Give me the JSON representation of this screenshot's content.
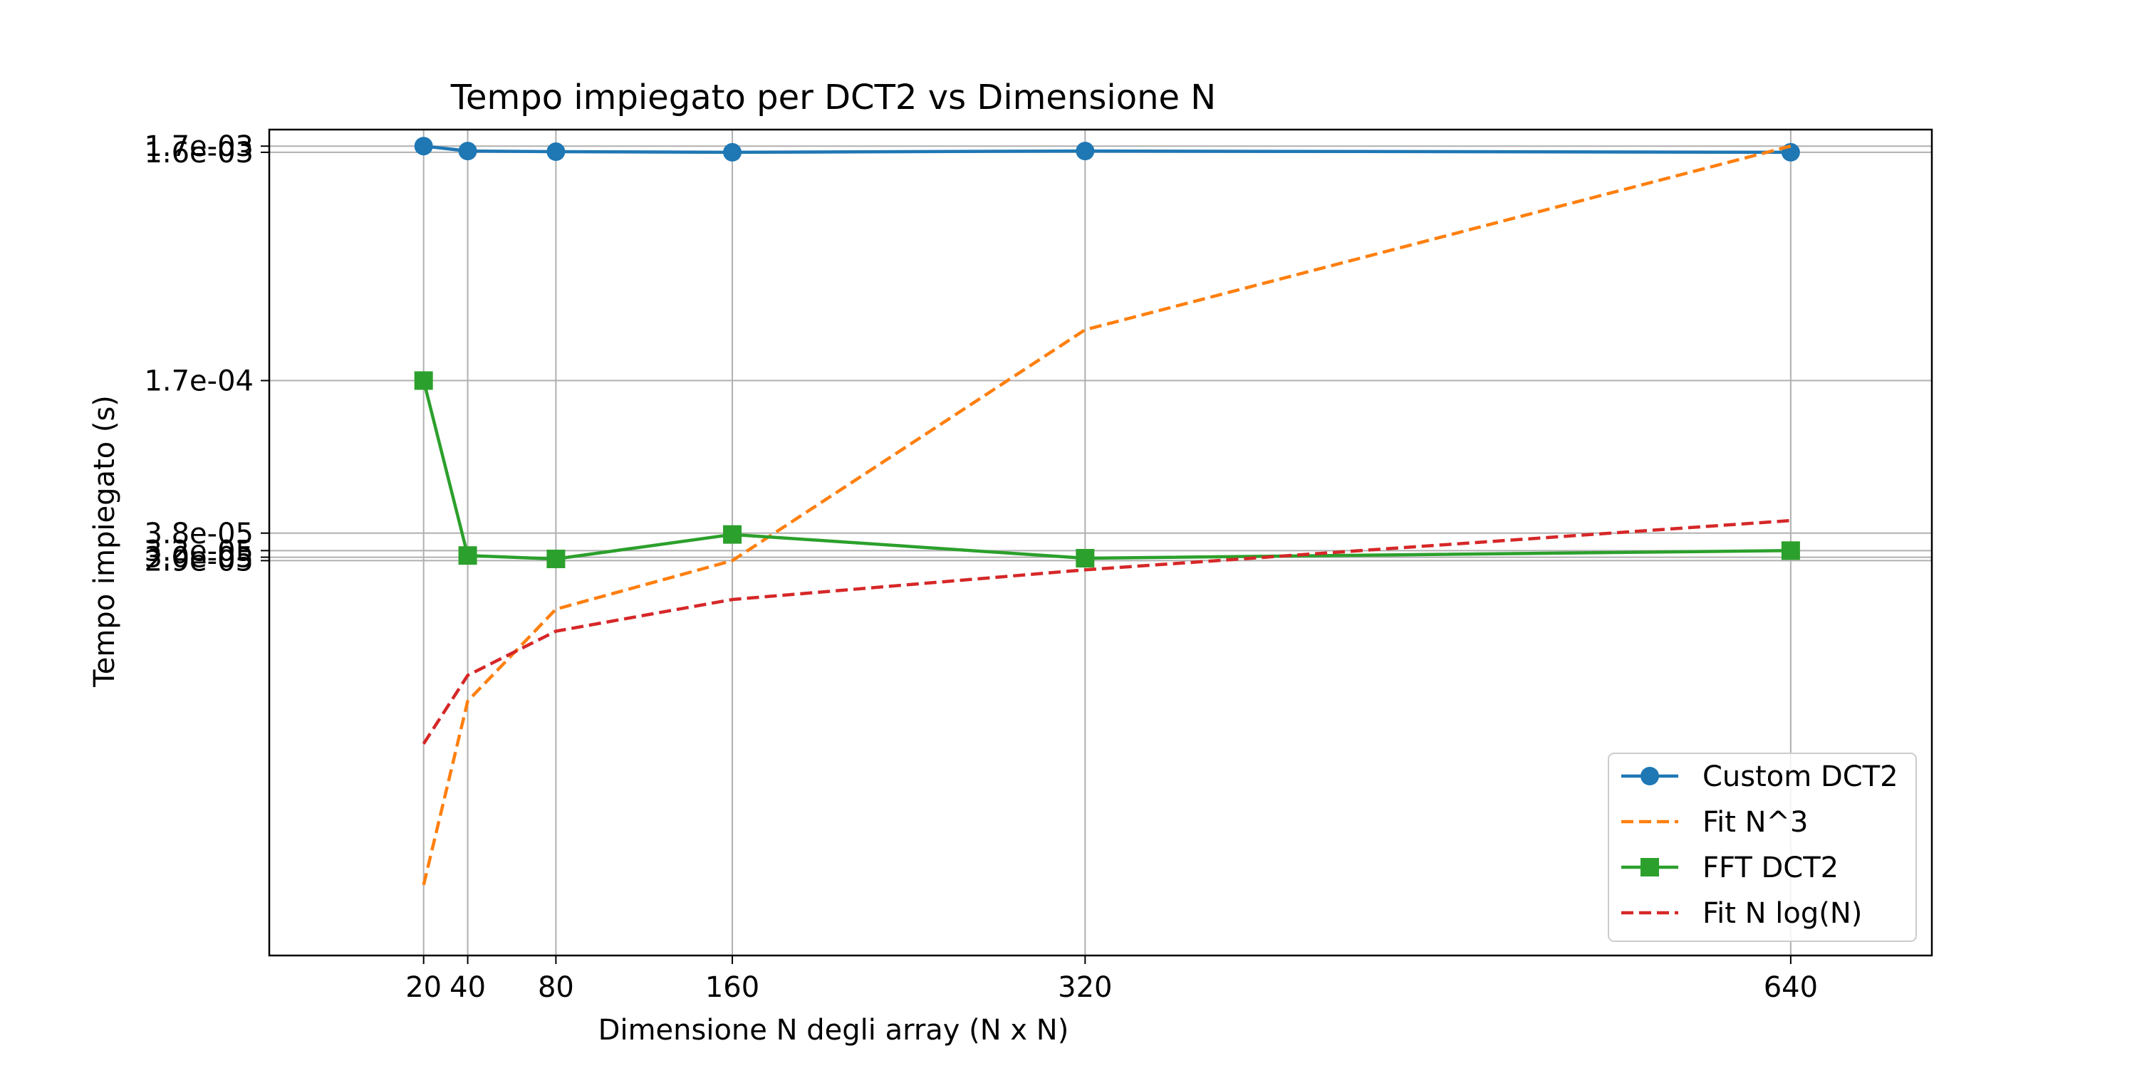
{
  "chart_data": {
    "type": "line",
    "title": "Tempo impiegato per DCT2 vs Dimensione N",
    "xlabel": "Dimensione N degli array (N x N)",
    "ylabel": "Tempo impiegato (s)",
    "x": [
      20,
      40,
      80,
      160,
      320,
      640
    ],
    "xlim": [
      -50,
      704
    ],
    "ylim": [
      6e-07,
      0.002
    ],
    "yscale": "log",
    "x_ticks": [
      20,
      40,
      80,
      160,
      320,
      640
    ],
    "x_tick_labels": [
      "20",
      "40",
      "80",
      "160",
      "320",
      "640"
    ],
    "y_ticks": [
      0.0017,
      0.0016,
      0.00017,
      3.8e-05,
      3.2e-05,
      3e-05,
      2.9e-05
    ],
    "y_tick_labels": [
      "1.7e-03",
      "1.6e-03",
      "1.7e-04",
      "3.8e-05",
      "3.2e-05",
      "3.0e-05",
      "2.9e-05"
    ],
    "grid": true,
    "legend_position": "lower-right",
    "series": [
      {
        "name": "Custom DCT2",
        "color": "#1f77b4",
        "linestyle": "solid",
        "marker": "circle",
        "values": [
          0.0017,
          0.00162,
          0.00161,
          0.0016,
          0.00162,
          0.0016
        ]
      },
      {
        "name": "Fit N^3",
        "color": "#ff7f0e",
        "linestyle": "dashed",
        "marker": "none",
        "values": [
          1.2e-06,
          7.3e-06,
          1.8e-05,
          2.9e-05,
          0.00028,
          0.0017
        ]
      },
      {
        "name": "FFT DCT2",
        "color": "#2ca02c",
        "linestyle": "solid",
        "marker": "square",
        "values": [
          0.00017,
          3.05e-05,
          2.95e-05,
          3.75e-05,
          2.97e-05,
          3.2e-05
        ]
      },
      {
        "name": "Fit N log(N)",
        "color": "#d62728",
        "linestyle": "dashed",
        "marker": "none",
        "values": [
          4.8e-06,
          9.4e-06,
          1.45e-05,
          1.98e-05,
          2.65e-05,
          4.3e-05
        ]
      }
    ]
  }
}
